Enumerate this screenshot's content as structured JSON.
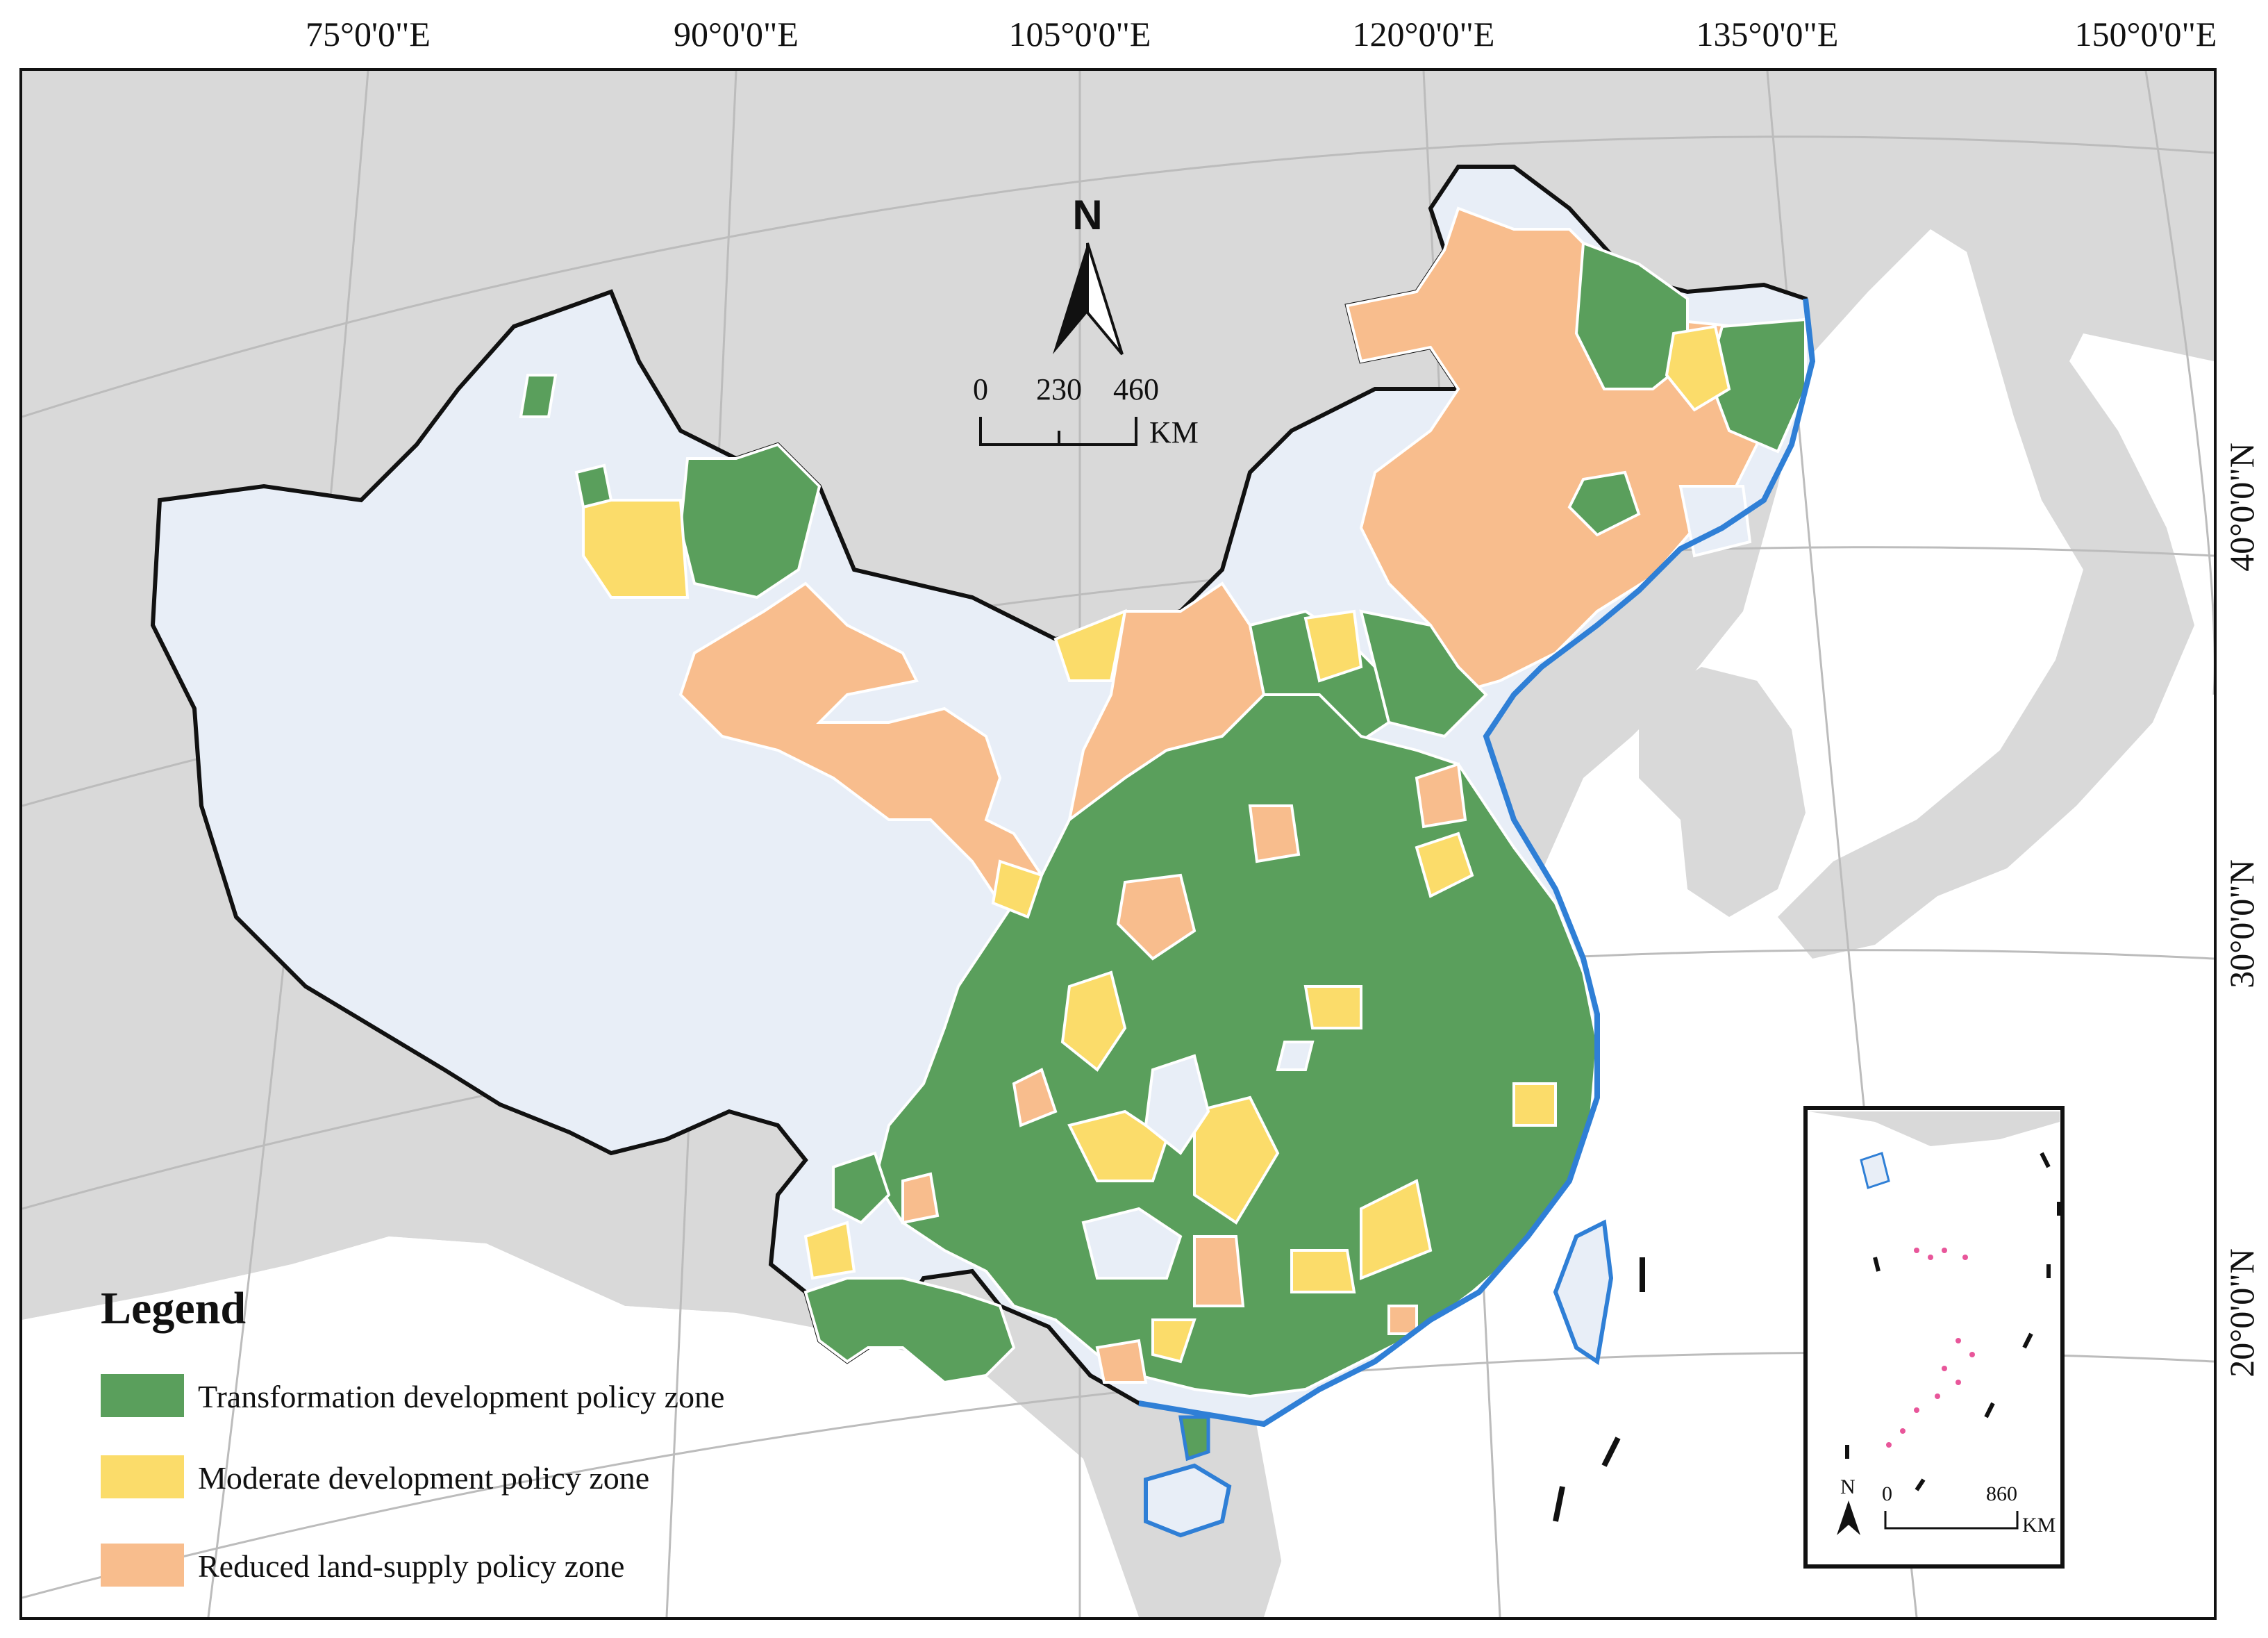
{
  "map": {
    "graticule": {
      "top_labels": [
        "75°0'0\"E",
        "90°0'0\"E",
        "105°0'0\"E",
        "120°0'0\"E",
        "135°0'0\"E",
        "150°0'0\"E"
      ],
      "right_labels": [
        "40°0'0\"N",
        "30°0'0\"N",
        "20°0'0\"N"
      ]
    },
    "north_arrow": {
      "label": "N"
    },
    "scale_bar": {
      "ticks": [
        "0",
        "230",
        "460"
      ],
      "unit": "KM"
    },
    "legend": {
      "title": "Legend",
      "items": [
        {
          "label": "Transformation development policy zone",
          "color": "#5a9f5c"
        },
        {
          "label": "Moderate development policy zone",
          "color": "#fbdc6a"
        },
        {
          "label": "Reduced land-supply policy zone",
          "color": "#f8bd8d"
        }
      ]
    },
    "colors": {
      "background_land": "#d9d9d9",
      "sea": "#ffffff",
      "unclassified": "#e8eef7",
      "coast": "#2f7fd6",
      "border": "#111111"
    },
    "inset": {
      "north_label": "N",
      "scale_ticks": [
        "0",
        "860"
      ],
      "unit": "KM"
    }
  }
}
